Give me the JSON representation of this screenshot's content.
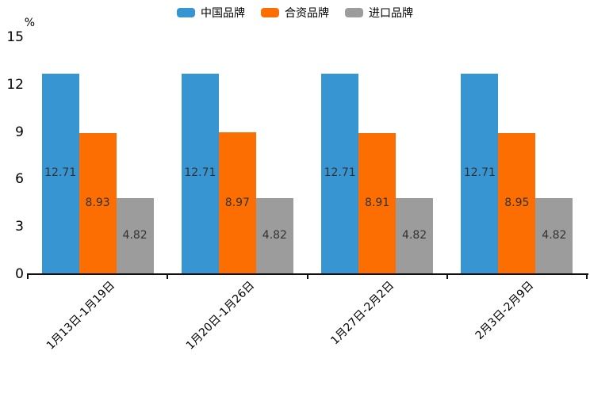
{
  "chart_data": {
    "type": "bar",
    "title": "",
    "unit_label": "%",
    "categories": [
      "1月13日-1月19日",
      "1月20日-1月26日",
      "1月27日-2月2日",
      "2月3日-2月9日"
    ],
    "series": [
      {
        "name": "中国品牌",
        "color": "#3795d1",
        "values": [
          12.71,
          12.71,
          12.71,
          12.71
        ]
      },
      {
        "name": "合资品牌",
        "color": "#fd6e02",
        "values": [
          8.93,
          8.97,
          8.91,
          8.95
        ]
      },
      {
        "name": "进口品牌",
        "color": "#9c9c9c",
        "values": [
          4.82,
          4.82,
          4.82,
          4.82
        ]
      }
    ],
    "ylim": [
      0,
      15
    ],
    "yticks": [
      0,
      3,
      6,
      9,
      12,
      15
    ],
    "xlabel": "",
    "ylabel": "%",
    "legend_position": "top",
    "grid": false,
    "value_labels": true,
    "value_label_decimals": 2,
    "axis_color": "#111111",
    "value_label_color": "#333333",
    "tick_label_color": "#000000"
  }
}
